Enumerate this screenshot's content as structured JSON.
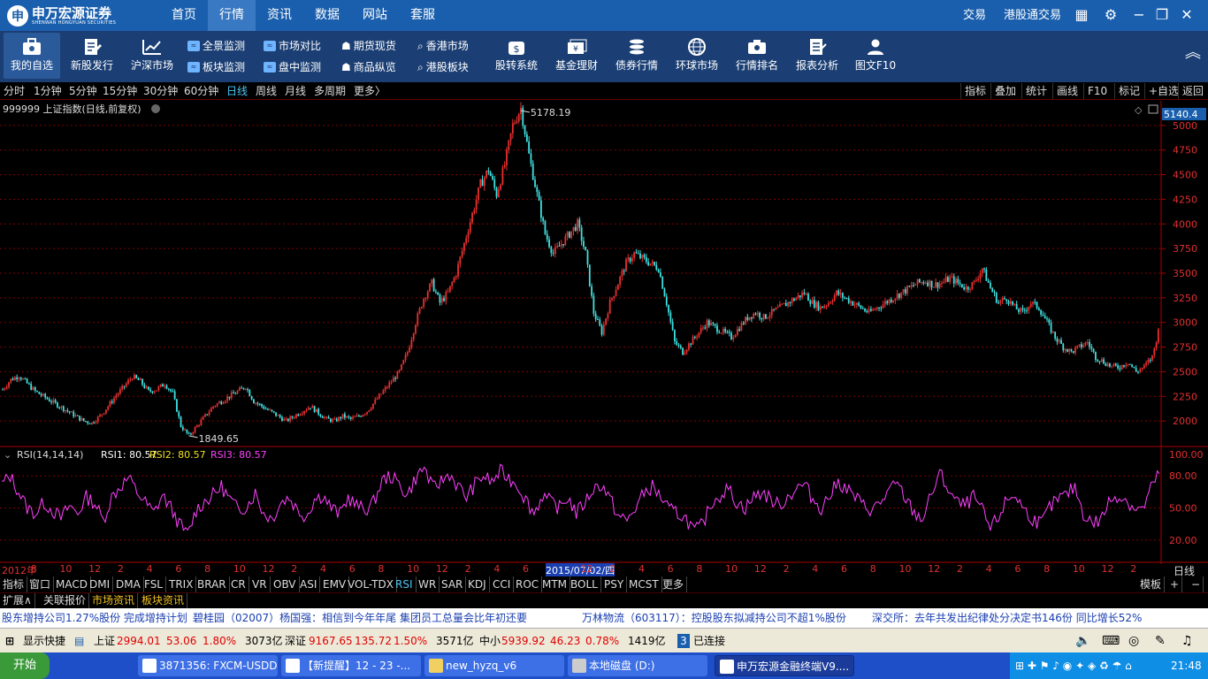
{
  "app": {
    "logo_cn": "申万宏源证券",
    "logo_en": "SHENWAN HONGYUAN SECURITIES"
  },
  "topnav": {
    "items": [
      "首页",
      "行情",
      "资讯",
      "数据",
      "网站",
      "套服"
    ],
    "active": "行情",
    "right": [
      "交易",
      "港股通交易"
    ]
  },
  "toolbar": {
    "big": [
      {
        "label": "我的自选",
        "icon": "briefcase-icon"
      },
      {
        "label": "新股发行",
        "icon": "new-stock-icon"
      },
      {
        "label": "沪深市场",
        "icon": "chart-icon"
      }
    ],
    "small_col1": [
      "全景监测",
      "板块监测"
    ],
    "small_col2": [
      "市场对比",
      "盘中监测"
    ],
    "small_col3": [
      "期货现货",
      "商品纵览"
    ],
    "small_col4": [
      "香港市场",
      "港股板块"
    ],
    "big2": [
      {
        "label": "股转系统",
        "icon": "dollar-bag-icon"
      },
      {
        "label": "基金理财",
        "icon": "fund-icon"
      },
      {
        "label": "债券行情",
        "icon": "coins-icon"
      },
      {
        "label": "环球市场",
        "icon": "globe-icon"
      },
      {
        "label": "行情排名",
        "icon": "ranking-icon"
      },
      {
        "label": "报表分析",
        "icon": "report-icon"
      },
      {
        "label": "图文F10",
        "icon": "person-icon"
      }
    ]
  },
  "periodbar": {
    "items": [
      "分时",
      "1分钟",
      "5分钟",
      "15分钟",
      "30分钟",
      "60分钟",
      "日线",
      "周线",
      "月线",
      "多周期",
      "更多〉"
    ],
    "active": "日线",
    "right": [
      "指标",
      "叠加",
      "统计",
      "画线",
      "F10",
      "标记",
      "+自选",
      "返回"
    ]
  },
  "chart_data": [
    {
      "type": "candlestick",
      "title": "999999 上证指数(日线,前复权)",
      "current_price_label": "5140.4",
      "y_ticks": [
        2000,
        2250,
        2500,
        2750,
        3000,
        3250,
        3500,
        3750,
        4000,
        4250,
        4500,
        4750,
        5000
      ],
      "ylim": [
        1750,
        5250
      ],
      "annotations": {
        "high": "5178.19",
        "low": "1849.65"
      },
      "x_ticks": [
        "2012年",
        "8",
        "10",
        "12",
        "2",
        "4",
        "6",
        "8",
        "10",
        "12",
        "2",
        "4",
        "6",
        "8",
        "10",
        "12",
        "2",
        "4",
        "6",
        "2015/07/02/四",
        "12",
        "2",
        "4",
        "6",
        "8",
        "10",
        "12",
        "2",
        "4",
        "6",
        "8",
        "10",
        "12",
        "2",
        "4",
        "6",
        "8",
        "10",
        "12",
        "2"
      ],
      "x_right_label": "日线",
      "series": [
        {
          "name": "上证指数",
          "close_path": [
            2320,
            2420,
            2460,
            2380,
            2300,
            2250,
            2200,
            2150,
            2100,
            2050,
            2000,
            1980,
            2050,
            2150,
            2260,
            2350,
            2450,
            2400,
            2300,
            2320,
            2380,
            2280,
            1950,
            1849.65,
            1950,
            2050,
            2150,
            2200,
            2250,
            2300,
            2350,
            2200,
            2150,
            2100,
            2050,
            2000,
            2050,
            2100,
            2150,
            2080,
            2020,
            2000,
            2050,
            2020,
            2050,
            2100,
            2200,
            2300,
            2400,
            2500,
            2700,
            3000,
            3250,
            3400,
            3200,
            3300,
            3500,
            3800,
            4100,
            4400,
            4550,
            4300,
            4600,
            5000,
            5178.19,
            4700,
            4300,
            3900,
            3700,
            3800,
            3900,
            4000,
            3700,
            3100,
            2900,
            3200,
            3400,
            3600,
            3700,
            3650,
            3600,
            3550,
            3200,
            2800,
            2700,
            2800,
            2900,
            3000,
            2950,
            2900,
            2850,
            2950,
            3050,
            3100,
            3050,
            3100,
            3150,
            3200,
            3250,
            3300,
            3200,
            3150,
            3200,
            3300,
            3250,
            3200,
            3150,
            3100,
            3150,
            3200,
            3250,
            3300,
            3350,
            3400,
            3420,
            3380,
            3400,
            3450,
            3400,
            3350,
            3400,
            3550,
            3350,
            3200,
            3250,
            3150,
            3100,
            3200,
            3150,
            3000,
            2850,
            2750,
            2700,
            2750,
            2800,
            2650,
            2600,
            2550,
            2550,
            2600,
            2500,
            2550,
            2650,
            3000
          ]
        }
      ]
    },
    {
      "type": "line",
      "title": "RSI(14,14,14)",
      "legend": [
        {
          "label": "RSI1: 80.57",
          "color": "#ffffff"
        },
        {
          "label": "RSI2: 80.57",
          "color": "#f0e020"
        },
        {
          "label": "RSI3: 80.57",
          "color": "#ff40ff"
        }
      ],
      "y_ticks": [
        "100.00",
        "80.00",
        "50.00",
        "20.00"
      ],
      "ylim": [
        0,
        100
      ],
      "series": [
        {
          "name": "RSI",
          "values": [
            72,
            80,
            65,
            50,
            45,
            55,
            48,
            40,
            52,
            45,
            60,
            55,
            38,
            60,
            70,
            78,
            65,
            55,
            45,
            62,
            50,
            35,
            25,
            48,
            56,
            62,
            70,
            58,
            48,
            52,
            64,
            45,
            40,
            55,
            60,
            48,
            42,
            58,
            62,
            50,
            44,
            60,
            52,
            48,
            55,
            75,
            80,
            72,
            62,
            78,
            88,
            68,
            75,
            82,
            70,
            60,
            72,
            80,
            74,
            84,
            78,
            72,
            58,
            45,
            62,
            55,
            50,
            60,
            45,
            55,
            68,
            72,
            58,
            42,
            38,
            50,
            64,
            70,
            60,
            48,
            45,
            40,
            28,
            35,
            55,
            62,
            68,
            55,
            50,
            60,
            65,
            58,
            52,
            60,
            68,
            72,
            58,
            50,
            62,
            74,
            68,
            60,
            52,
            48,
            55,
            66,
            72,
            58,
            45,
            40,
            62,
            82,
            68,
            55,
            52,
            60,
            48,
            30,
            42,
            58,
            62,
            48,
            40,
            35,
            50,
            58,
            62,
            70,
            45,
            36,
            38,
            55,
            62,
            58,
            50,
            48,
            68,
            82
          ]
        }
      ]
    }
  ],
  "indicator_tabs": [
    "指标",
    "窗口",
    "MACD",
    "DMI",
    "DMA",
    "FSL",
    "TRIX",
    "BRAR",
    "CR",
    "VR",
    "OBV",
    "ASI",
    "EMV",
    "VOL-TDX",
    "RSI",
    "WR",
    "SAR",
    "KDJ",
    "CCI",
    "ROC",
    "MTM",
    "BOLL",
    "PSY",
    "MCST",
    "更多"
  ],
  "indicator_active": "RSI",
  "indicator_right": [
    "模板",
    "+",
    "−"
  ],
  "ext_tabs": [
    "扩展∧",
    "关联报价",
    "市场资讯",
    "板块资讯"
  ],
  "ticker": [
    "股东增持公司1.27%股份 完成增持计划",
    "碧桂园（02007）杨国强：相信到今年年尾 集团员工总量会比年初还要",
    "万林物流（603117）：控股股东拟减持公司不超1%股份",
    "深交所：去年共发出纪律处分决定书146份 同比增长52%"
  ],
  "status": {
    "quick": "显示快捷",
    "sh_label": "上证",
    "sh_price": "2994.01",
    "sh_chg": "53.06",
    "sh_pct": "1.80%",
    "sh_vol": "3073亿",
    "sz_label": "深证",
    "sz_price": "9167.65",
    "sz_chg": "135.72",
    "sz_pct": "1.50%",
    "sz_vol": "3571亿",
    "zx_label": "中小",
    "zx_price": "5939.92",
    "zx_chg": "46.23",
    "zx_pct": "0.78%",
    "zx_vol": "1419亿",
    "conn_num": "3",
    "conn": "已连接"
  },
  "taskbar": {
    "start": "开始",
    "tasks": [
      "3871356: FXCM-USDDe...",
      "【新提醒】12 - 23 -...",
      "new_hyzq_v6",
      "本地磁盘 (D:)",
      "申万宏源金融终端V9...."
    ],
    "clock": "21:48"
  },
  "colors": {
    "up": "#e83030",
    "down": "#40e0e0",
    "rsi": "#ff40ff",
    "grid": "#800000",
    "nav_bg": "#1a5fae",
    "toolbar_bg": "#1b3f74"
  }
}
